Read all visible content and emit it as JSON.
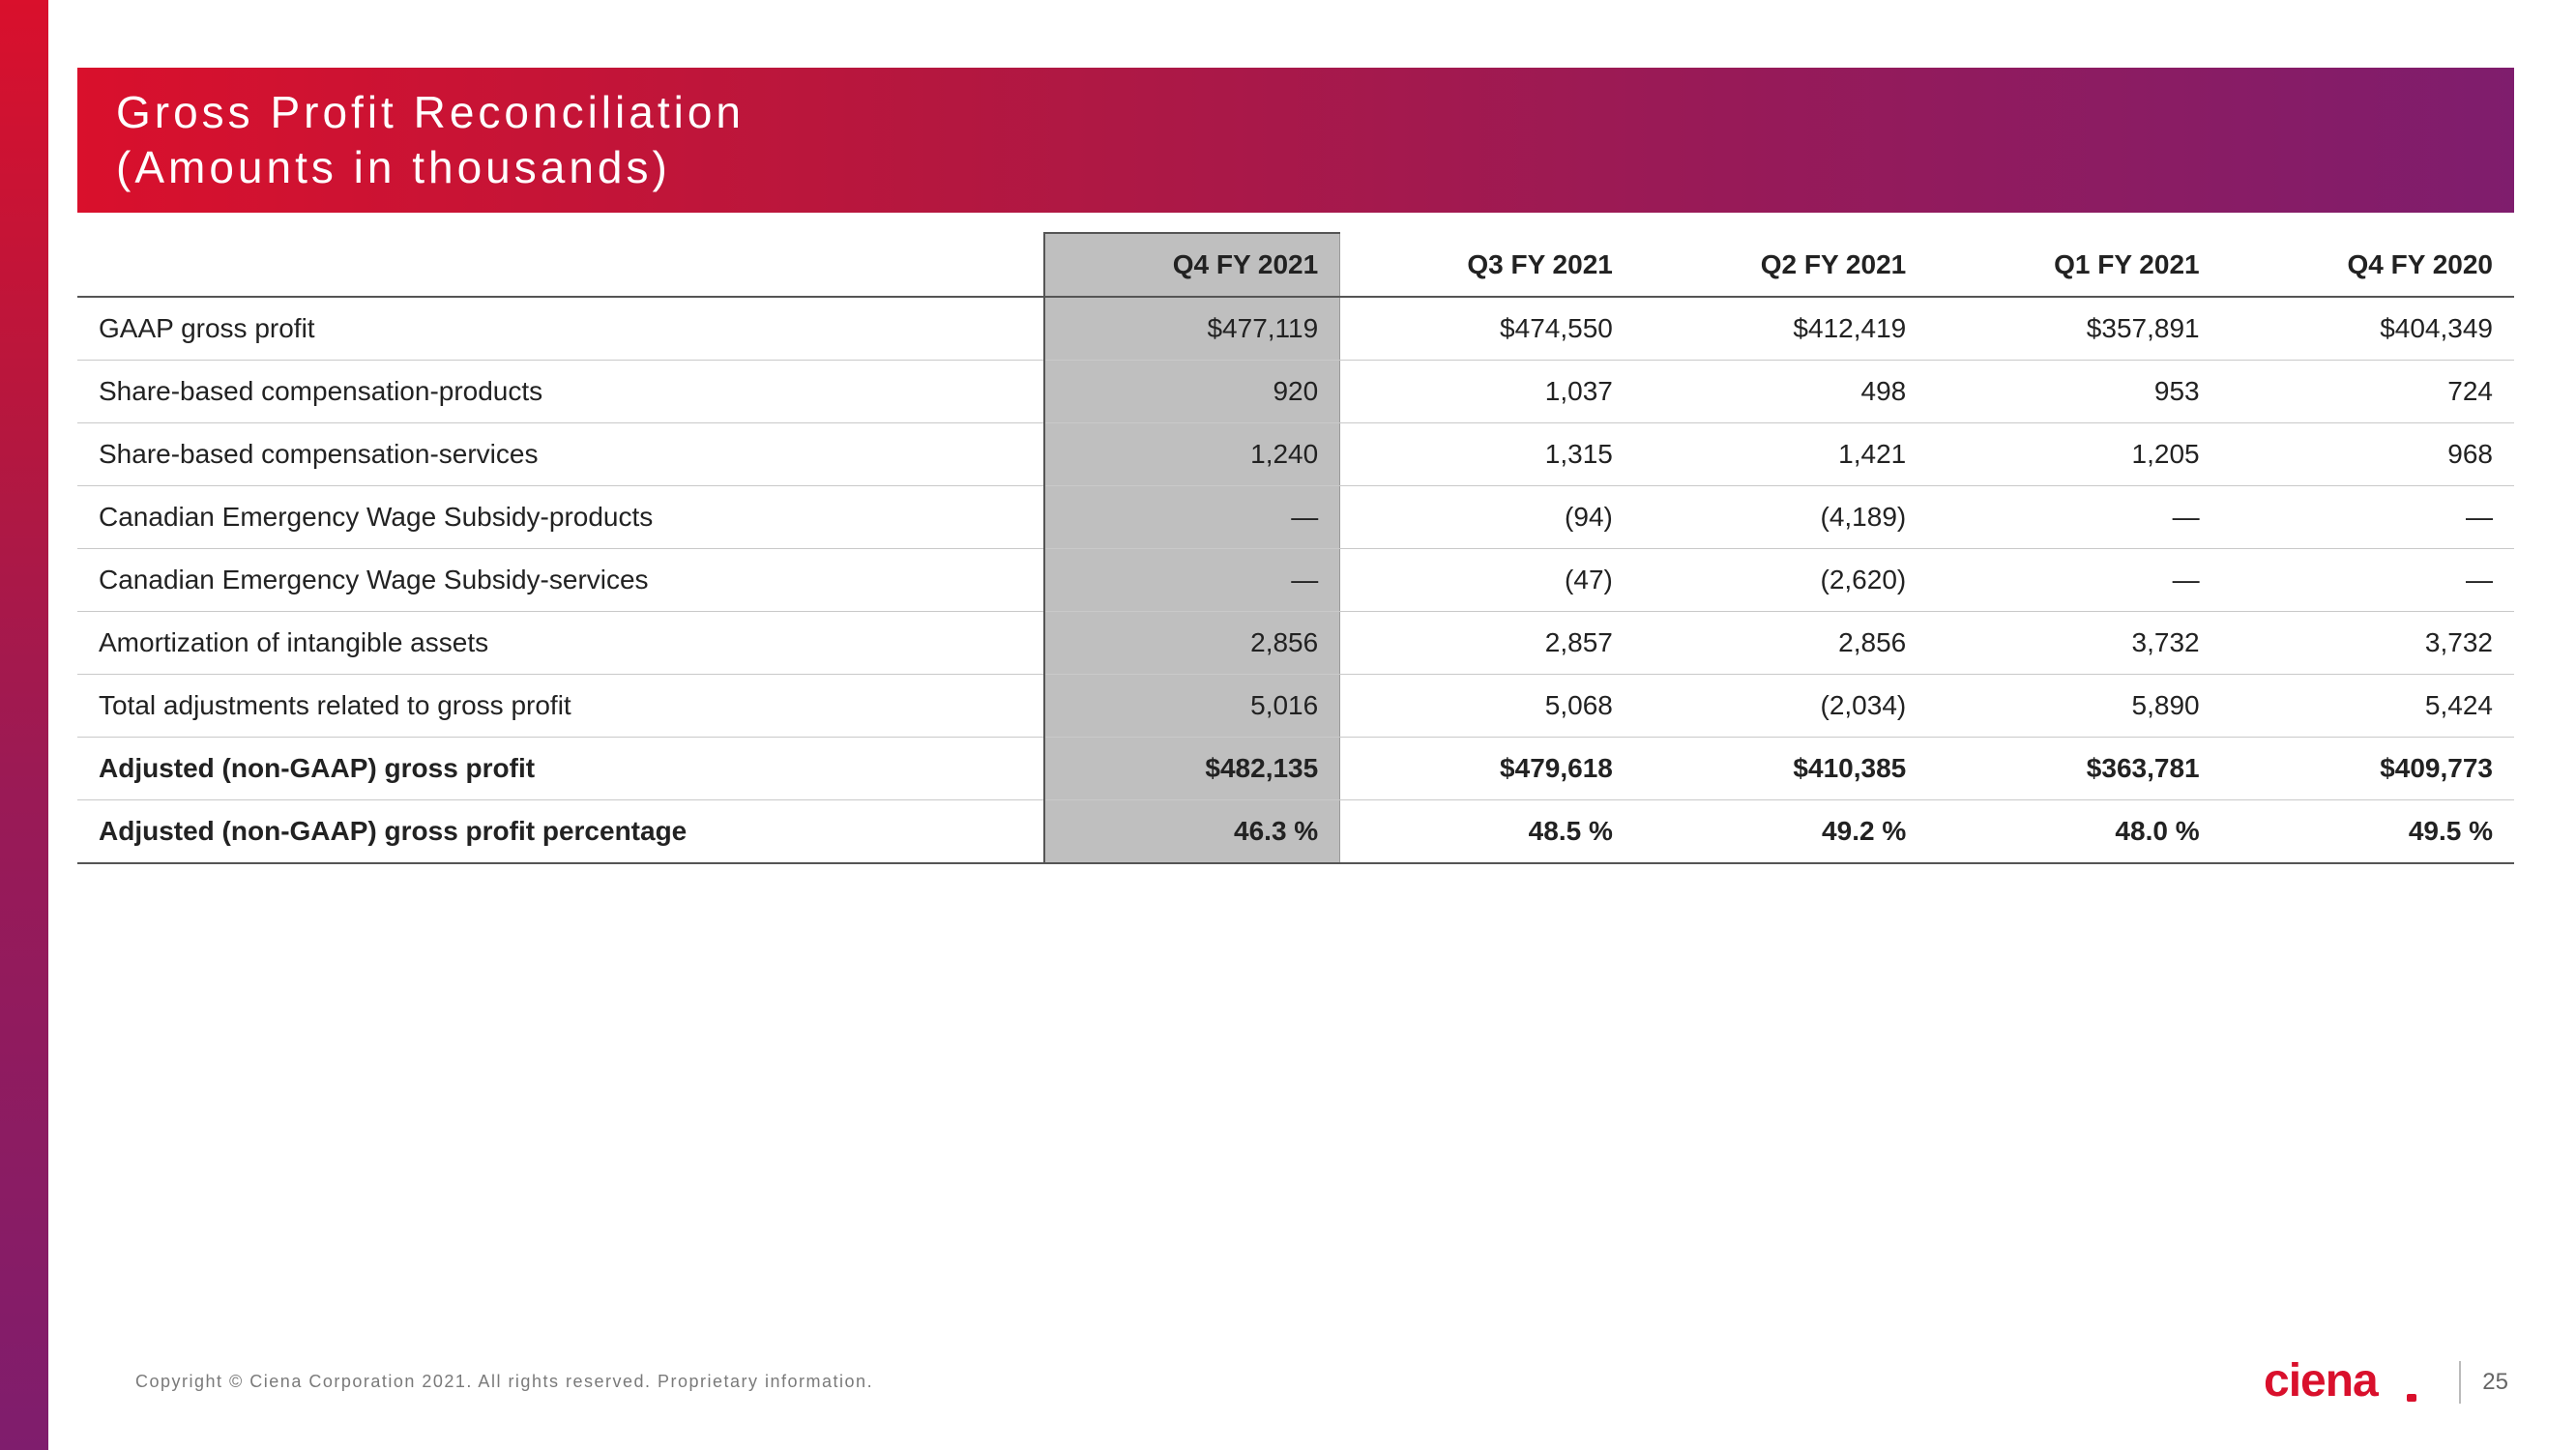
{
  "colors": {
    "gradient_start": "#d9102c",
    "gradient_end": "#7f1d6d",
    "highlight_col_bg": "#bfbfbf",
    "text": "#222222",
    "grid": "#c9c9c9",
    "logo": "#d9102c"
  },
  "header": {
    "line1": "Gross Profit Reconciliation",
    "line2": "(Amounts in thousands)"
  },
  "table": {
    "columns": [
      "Q4 FY 2021",
      "Q3 FY 2021",
      "Q2 FY 2021",
      "Q1 FY 2021",
      "Q4 FY 2020"
    ],
    "highlight_col_index": 0,
    "rows": [
      {
        "label": "GAAP gross profit",
        "values": [
          "$477,119",
          "$474,550",
          "$412,419",
          "$357,891",
          "$404,349"
        ],
        "bold": false
      },
      {
        "label": "Share-based compensation-products",
        "values": [
          "920",
          "1,037",
          "498",
          "953",
          "724"
        ],
        "bold": false
      },
      {
        "label": "Share-based compensation-services",
        "values": [
          "1,240",
          "1,315",
          "1,421",
          "1,205",
          "968"
        ],
        "bold": false
      },
      {
        "label": "Canadian Emergency Wage Subsidy-products",
        "values": [
          "—",
          "(94)",
          "(4,189)",
          "—",
          "—"
        ],
        "bold": false
      },
      {
        "label": "Canadian Emergency Wage Subsidy-services",
        "values": [
          "—",
          "(47)",
          "(2,620)",
          "—",
          "—"
        ],
        "bold": false
      },
      {
        "label": "Amortization of intangible assets",
        "values": [
          "2,856",
          "2,857",
          "2,856",
          "3,732",
          "3,732"
        ],
        "bold": false
      },
      {
        "label": "Total adjustments related to gross profit",
        "values": [
          "5,016",
          "5,068",
          "(2,034)",
          "5,890",
          "5,424"
        ],
        "bold": false
      },
      {
        "label": "Adjusted (non-GAAP) gross profit",
        "values": [
          "$482,135",
          "$479,618",
          "$410,385",
          "$363,781",
          "$409,773"
        ],
        "bold": true
      },
      {
        "label": "Adjusted (non-GAAP) gross profit percentage",
        "values": [
          "46.3 %",
          "48.5 %",
          "49.2 %",
          "48.0 %",
          "49.5 %"
        ],
        "bold": true
      }
    ]
  },
  "footer": {
    "copyright": "Copyright © Ciena Corporation 2021. All rights reserved. Proprietary information.",
    "page": "25",
    "logo_text": "ciena"
  }
}
